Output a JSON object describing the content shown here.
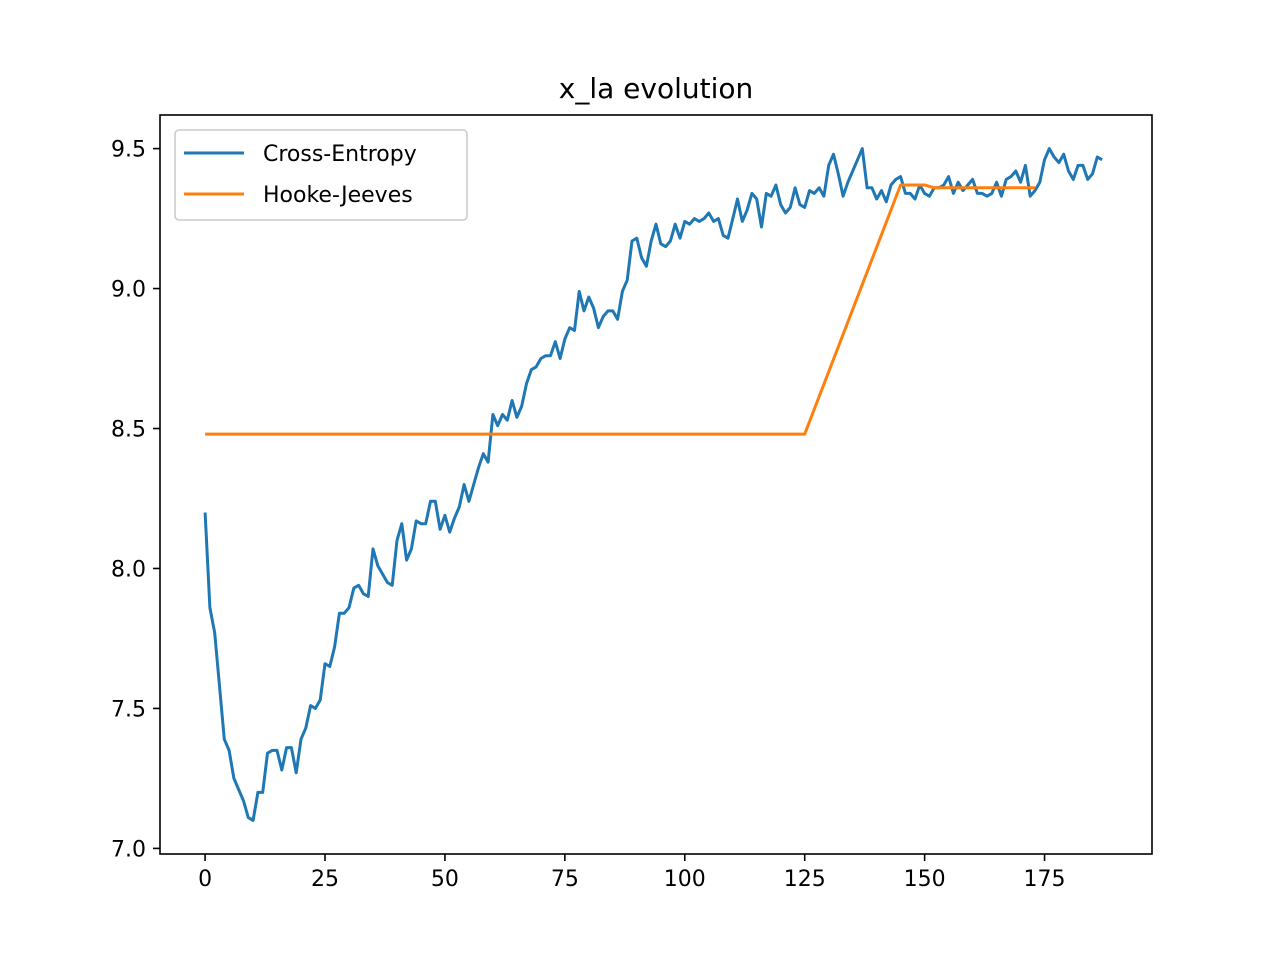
{
  "chart_data": {
    "type": "line",
    "title": "x_la evolution",
    "xlabel": "",
    "ylabel": "",
    "xlim": [
      -9.4,
      197.4
    ],
    "ylim": [
      6.98,
      9.62
    ],
    "xticks": [
      0,
      25,
      50,
      75,
      100,
      125,
      150,
      175
    ],
    "yticks": [
      7.0,
      7.5,
      8.0,
      8.5,
      9.0,
      9.5
    ],
    "xtick_labels": [
      "0",
      "25",
      "50",
      "75",
      "100",
      "125",
      "150",
      "175"
    ],
    "ytick_labels": [
      "7.0",
      "7.5",
      "8.0",
      "8.5",
      "9.0",
      "9.5"
    ],
    "grid": false,
    "legend_position": "upper-left",
    "series": [
      {
        "name": "Cross-Entropy",
        "color": "#1f77b4",
        "x_start": 0,
        "x_step": 1,
        "values": [
          8.2,
          7.86,
          7.77,
          7.58,
          7.39,
          7.35,
          7.25,
          7.21,
          7.17,
          7.11,
          7.1,
          7.2,
          7.2,
          7.34,
          7.35,
          7.35,
          7.28,
          7.36,
          7.36,
          7.27,
          7.39,
          7.43,
          7.51,
          7.5,
          7.53,
          7.66,
          7.65,
          7.72,
          7.84,
          7.84,
          7.86,
          7.93,
          7.94,
          7.91,
          7.9,
          8.07,
          8.01,
          7.98,
          7.95,
          7.94,
          8.1,
          8.16,
          8.03,
          8.07,
          8.17,
          8.16,
          8.16,
          8.24,
          8.24,
          8.14,
          8.19,
          8.13,
          8.18,
          8.22,
          8.3,
          8.24,
          8.3,
          8.36,
          8.41,
          8.38,
          8.55,
          8.51,
          8.55,
          8.53,
          8.6,
          8.54,
          8.58,
          8.66,
          8.71,
          8.72,
          8.75,
          8.76,
          8.76,
          8.81,
          8.75,
          8.82,
          8.86,
          8.85,
          8.99,
          8.92,
          8.97,
          8.93,
          8.86,
          8.9,
          8.92,
          8.92,
          8.89,
          8.99,
          9.03,
          9.17,
          9.18,
          9.11,
          9.08,
          9.17,
          9.23,
          9.16,
          9.15,
          9.17,
          9.23,
          9.18,
          9.24,
          9.23,
          9.25,
          9.24,
          9.25,
          9.27,
          9.24,
          9.25,
          9.19,
          9.18,
          9.25,
          9.32,
          9.24,
          9.28,
          9.34,
          9.32,
          9.22,
          9.34,
          9.33,
          9.37,
          9.3,
          9.27,
          9.29,
          9.36,
          9.3,
          9.29,
          9.35,
          9.34,
          9.36,
          9.33,
          9.44,
          9.48,
          9.41,
          9.33,
          9.38,
          9.42,
          9.46,
          9.5,
          9.36,
          9.36,
          9.32,
          9.35,
          9.31,
          9.37,
          9.39,
          9.4,
          9.34,
          9.34,
          9.32,
          9.37,
          9.34,
          9.33,
          9.36,
          9.36,
          9.37,
          9.4,
          9.34,
          9.38,
          9.35,
          9.37,
          9.39,
          9.34,
          9.34,
          9.33,
          9.34,
          9.38,
          9.33,
          9.39,
          9.4,
          9.42,
          9.38,
          9.44,
          9.33,
          9.35,
          9.38,
          9.46,
          9.5,
          9.47,
          9.45,
          9.48,
          9.42,
          9.39,
          9.44,
          9.44,
          9.39,
          9.41,
          9.47,
          9.46
        ]
      },
      {
        "name": "Hooke-Jeeves",
        "color": "#ff7f0e",
        "x": [
          0,
          125,
          145,
          150,
          152,
          173
        ],
        "values": [
          8.48,
          8.48,
          9.37,
          9.37,
          9.36,
          9.36
        ]
      }
    ]
  }
}
